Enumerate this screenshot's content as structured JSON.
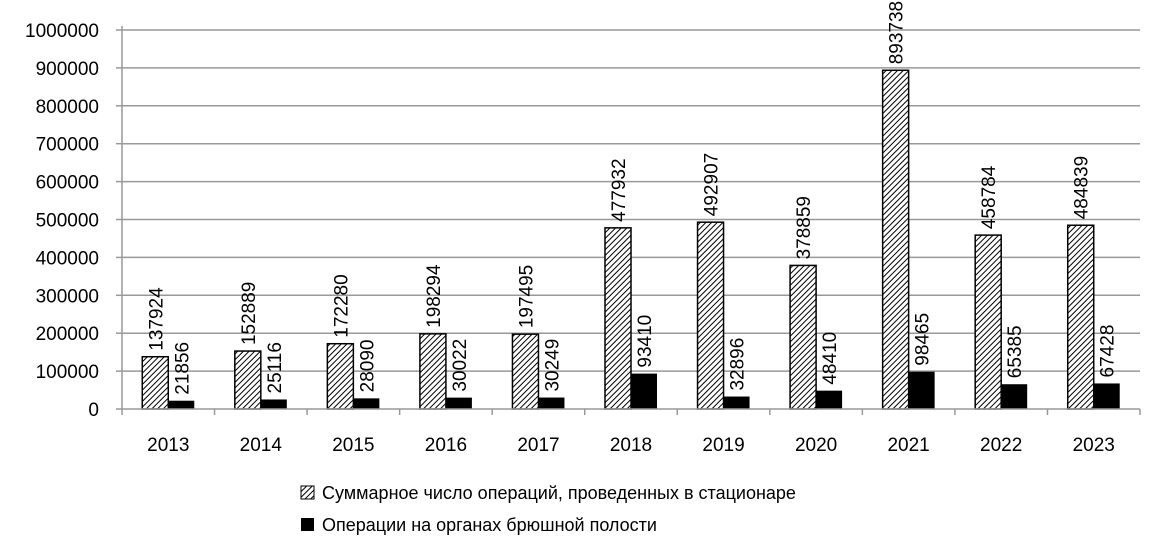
{
  "chart_data": {
    "type": "bar",
    "title": "",
    "xlabel": "",
    "ylabel": "",
    "categories": [
      "2013",
      "2014",
      "2015",
      "2016",
      "2017",
      "2018",
      "2019",
      "2020",
      "2021",
      "2022",
      "2023"
    ],
    "ylim": [
      0,
      1000000
    ],
    "yticks": [
      "0",
      "100000",
      "200000",
      "300000",
      "400000",
      "500000",
      "600000",
      "700000",
      "800000",
      "900000",
      "1000000"
    ],
    "grid": true,
    "legend_position": "bottom",
    "series": [
      {
        "name": "Суммарное число операций, проведенных  в стационаре",
        "pattern": "hatched",
        "values": [
          137924,
          152889,
          172280,
          198294,
          197495,
          477932,
          492907,
          378859,
          893738,
          458784,
          484839
        ]
      },
      {
        "name": "Операции на органах брюшной полости",
        "color": "#000000",
        "values": [
          21856,
          25116,
          28090,
          30022,
          30249,
          93410,
          32896,
          48410,
          98465,
          65385,
          67428
        ]
      }
    ]
  }
}
